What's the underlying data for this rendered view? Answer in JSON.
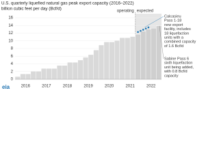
{
  "chart_data": {
    "type": "bar",
    "title": "U.S. quarterly liquefied natural gas peak export capacity (2016–2022)",
    "subtitle": "billion cubic feet per day (Bcf/d)",
    "x": [
      2016,
      2016.25,
      2016.5,
      2016.75,
      2017,
      2017.25,
      2017.5,
      2017.75,
      2018,
      2018.25,
      2018.5,
      2018.75,
      2019,
      2019.25,
      2019.5,
      2019.75,
      2020,
      2020.25,
      2020.5,
      2020.75,
      2021,
      2021.25,
      2021.5,
      2021.75,
      2022,
      2022.25,
      2022.5,
      2022.75
    ],
    "values": [
      0.7,
      1.4,
      1.4,
      2.1,
      2.1,
      2.8,
      2.8,
      2.8,
      3.6,
      3.6,
      4.4,
      4.4,
      5.0,
      5.7,
      6.4,
      7.6,
      8.9,
      9.7,
      9.7,
      10.1,
      10.8,
      10.8,
      11.1,
      11.7,
      12.5,
      13.0,
      13.3,
      13.9
    ],
    "color": "#d9d9d9",
    "expected_color": "#e6e6e6",
    "expected_from": 2021.75,
    "operating_label": "operating",
    "expected_label": "expected",
    "markers": {
      "x": [
        2021.875,
        2022,
        2022.125,
        2022.25,
        2022.375
      ],
      "values": [
        12.3,
        12.6,
        12.9,
        13.2,
        13.5
      ],
      "color": "#1f77b4"
    },
    "xlim": [
      2016,
      2023
    ],
    "xticks": [
      {
        "value": 2016.5,
        "label": "2016"
      },
      {
        "value": 2017.5,
        "label": "2017"
      },
      {
        "value": 2018.5,
        "label": "2018"
      },
      {
        "value": 2019.5,
        "label": "2019"
      },
      {
        "value": 2020.5,
        "label": "2020"
      },
      {
        "value": 2021.5,
        "label": "2021"
      },
      {
        "value": 2022.5,
        "label": "2022"
      }
    ],
    "ylim": [
      0,
      16
    ],
    "yticks": [
      0,
      2,
      4,
      6,
      8,
      10,
      12,
      14,
      16
    ],
    "annotations": [
      {
        "lines": [
          "Calcasieu",
          "Pass 1-18",
          "new export",
          "facility, includes",
          "18 liquefaction",
          "units with a",
          "combined capacity",
          "of 1.6 Bcf/d"
        ],
        "color": "#1f77b4"
      },
      {
        "lines": [
          "Sabine Pass 6",
          "sixth liquefaction",
          "unit being added,",
          "with 0.8 Bcf/d",
          "capacity"
        ],
        "color": "#555555"
      }
    ],
    "source": "eia"
  }
}
